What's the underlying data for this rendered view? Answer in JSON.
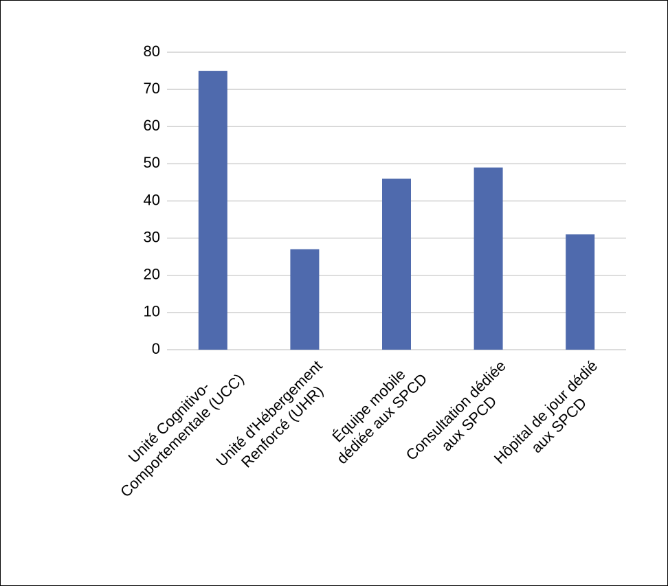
{
  "chart_data": {
    "type": "bar",
    "categories": [
      "Unité Cognitivo-\nComportementale (UCC)",
      "Unité d'Hébergement\nRenforcé (UHR)",
      "Équipe mobile\ndédiée aux SPCD",
      "Consultation dédiée\naux SPCD",
      "Hôpital de jour dédié\naux SPCD"
    ],
    "values": [
      75,
      27,
      46,
      49,
      31
    ],
    "color": "#4f6aad",
    "ylim": [
      0,
      80
    ],
    "yticks": [
      0,
      10,
      20,
      30,
      40,
      50,
      60,
      70,
      80
    ],
    "grid": true
  }
}
